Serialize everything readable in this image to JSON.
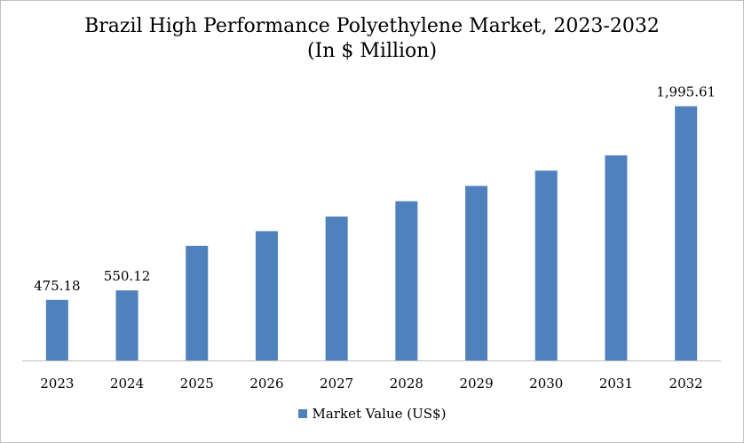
{
  "chart_data": {
    "type": "bar",
    "title": "Brazil High Performance Polyethylene Market, 2023-2032",
    "subtitle": "(In $ Million)",
    "categories": [
      "2023",
      "2024",
      "2025",
      "2026",
      "2027",
      "2028",
      "2029",
      "2030",
      "2031",
      "2032"
    ],
    "series": [
      {
        "name": "Market Value (US$)",
        "values": [
          475.18,
          550.12,
          900,
          1015,
          1130,
          1250,
          1370,
          1490,
          1610,
          1995.61
        ],
        "color": "#4f81bd"
      }
    ],
    "data_labels": [
      "475.18",
      "550.12",
      "",
      "",
      "",
      "",
      "",
      "",
      "",
      "1,995.61"
    ],
    "ylim": [
      0,
      2300
    ],
    "grid": false,
    "legend_position": "bottom",
    "xlabel": "",
    "ylabel": ""
  }
}
